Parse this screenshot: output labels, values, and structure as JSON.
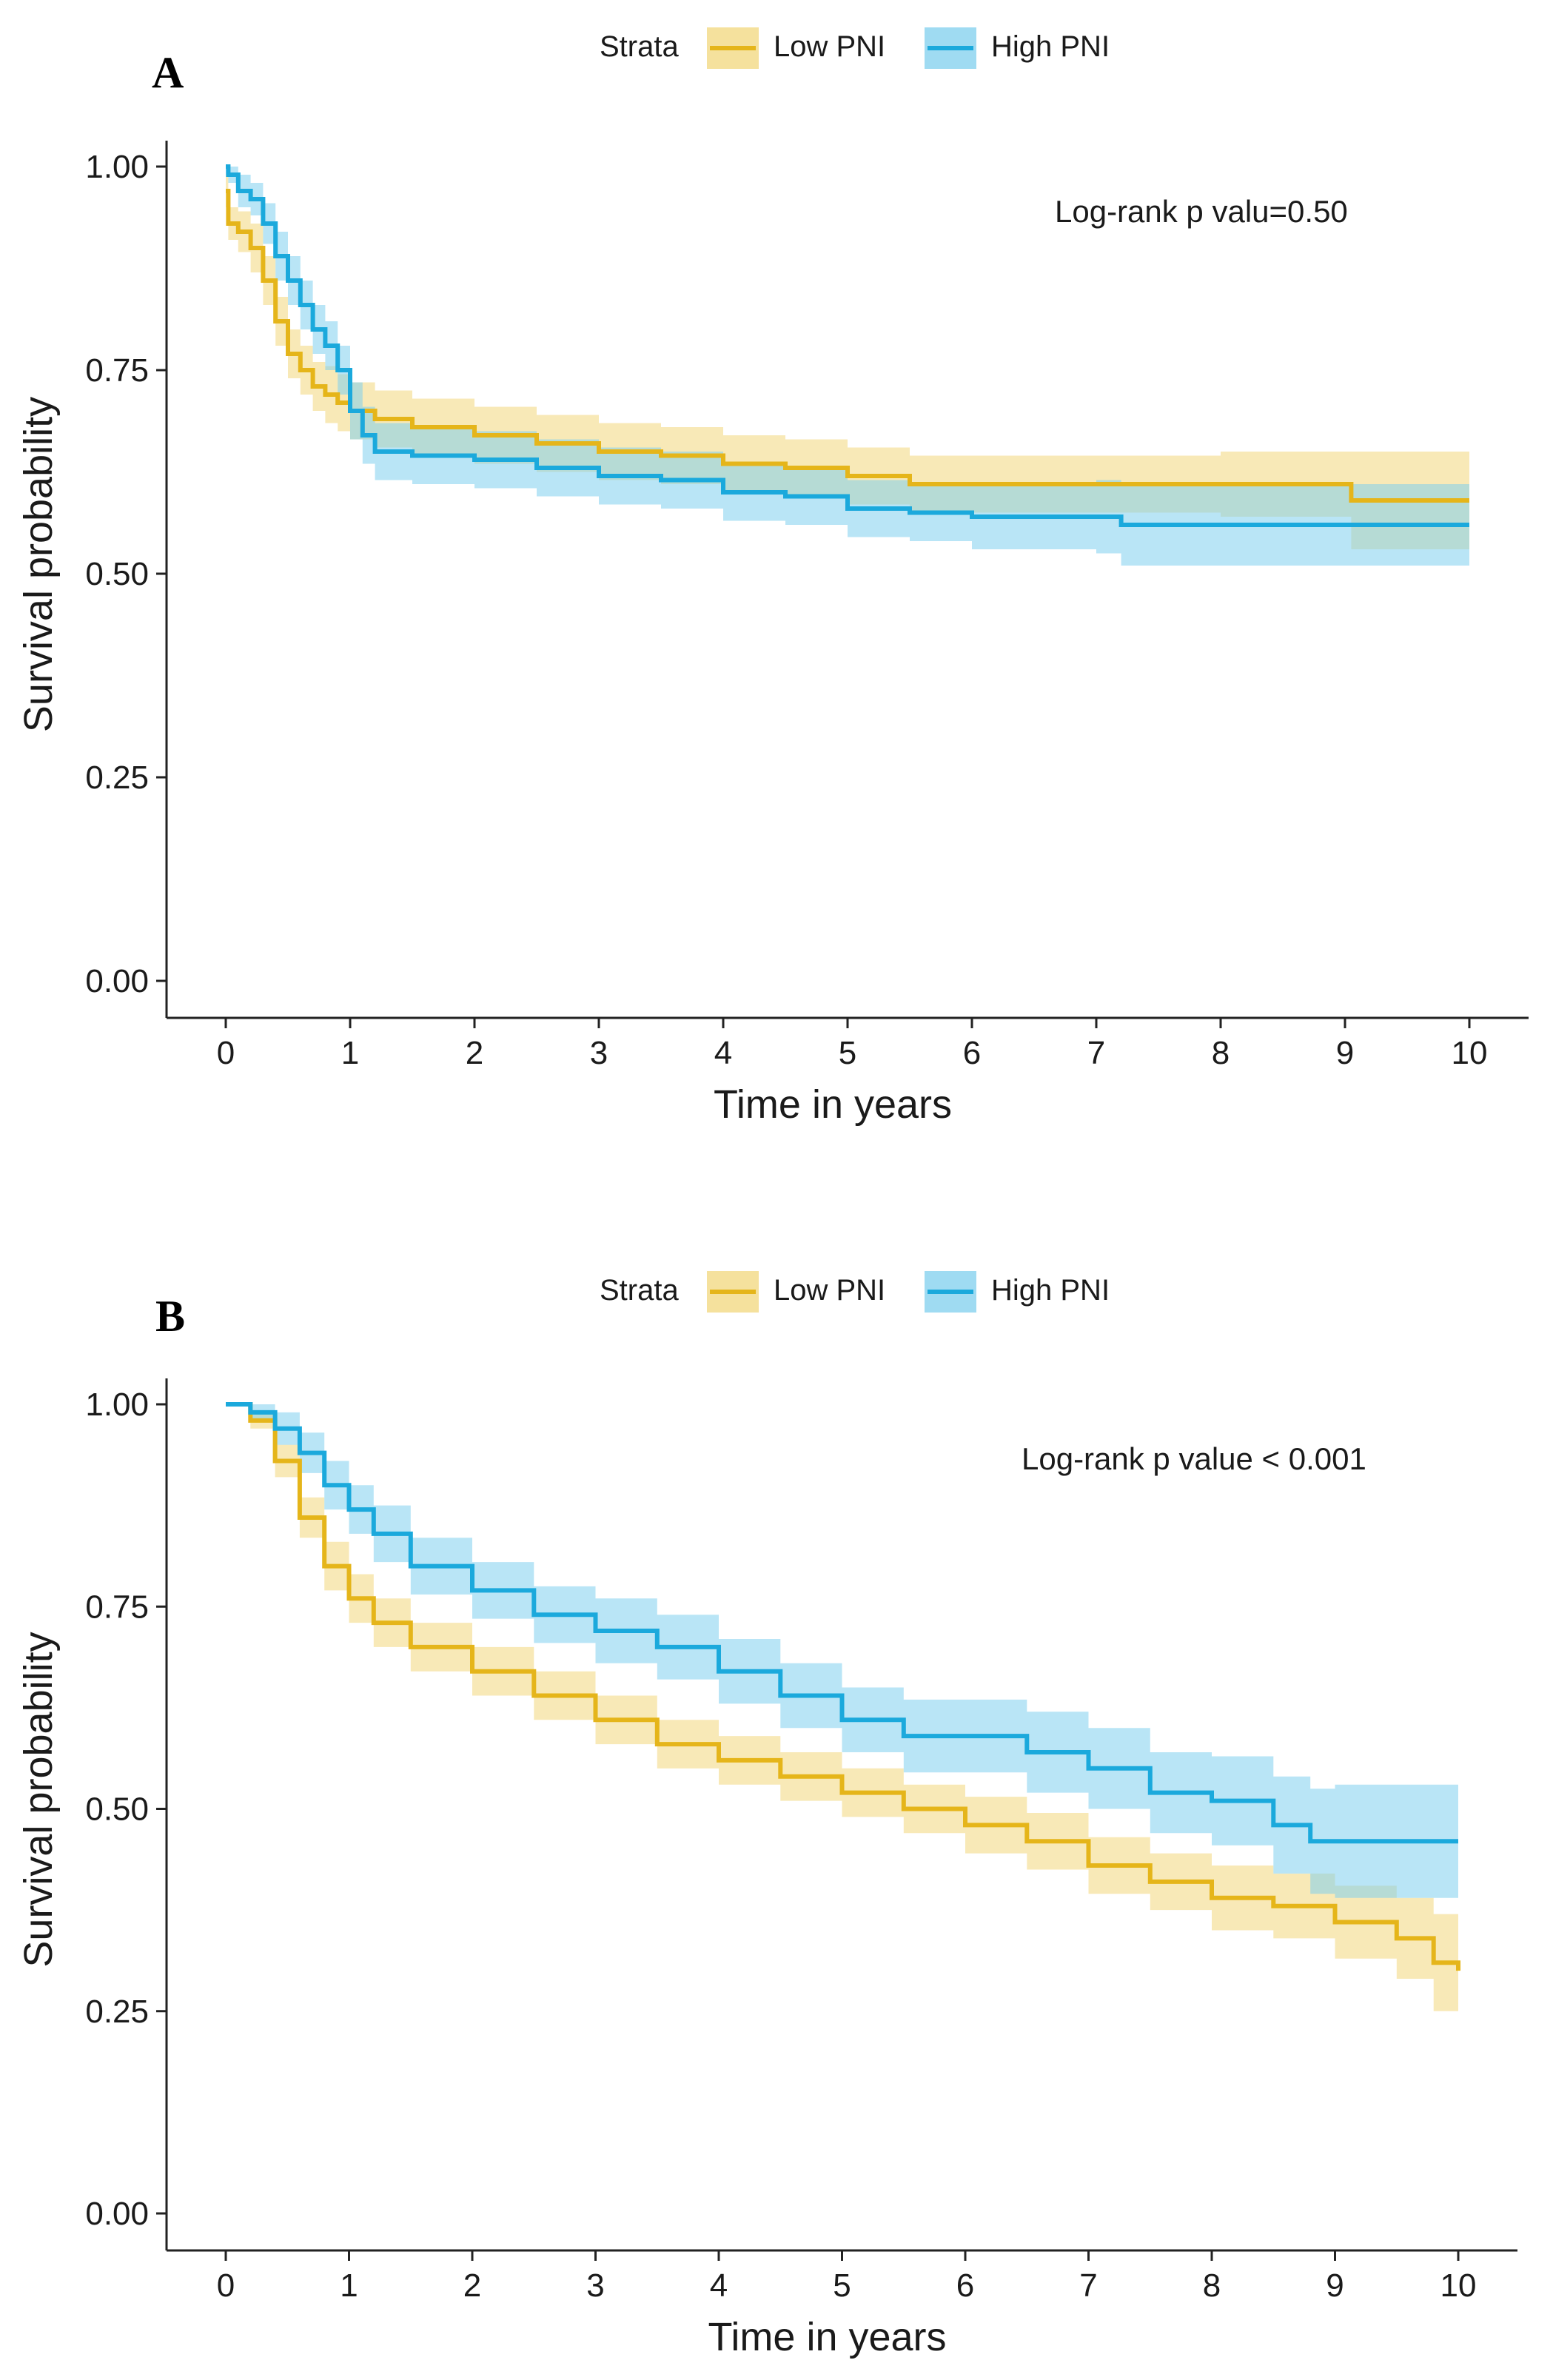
{
  "colors": {
    "low": "#E5B51A",
    "high": "#1BA9DC",
    "low_band": "#F2D77C",
    "high_band": "#7FCFEE"
  },
  "chart_data": [
    {
      "panel": "A",
      "type": "line",
      "subtype": "kaplan-meier",
      "legend_title": "Strata",
      "xlabel": "Time in years",
      "ylabel": "Survival probability",
      "xlim": [
        0,
        10
      ],
      "ylim": [
        0,
        1
      ],
      "xticks": [
        0,
        1,
        2,
        3,
        4,
        5,
        6,
        7,
        8,
        9,
        10
      ],
      "yticks": [
        "0.00",
        "0.25",
        "0.50",
        "0.75",
        "1.00"
      ],
      "annotation": "Log-rank p valu=0.50",
      "series": [
        {
          "name": "Low PNI",
          "color_key": "low",
          "x": [
            0,
            0.02,
            0.1,
            0.2,
            0.3,
            0.4,
            0.5,
            0.6,
            0.7,
            0.8,
            0.9,
            1.0,
            1.2,
            1.5,
            2.0,
            2.5,
            3.0,
            3.5,
            4.0,
            4.5,
            5.0,
            5.5,
            6.0,
            7.0,
            8.0,
            9.0,
            9.05,
            10.0
          ],
          "y": [
            0.97,
            0.93,
            0.92,
            0.9,
            0.86,
            0.81,
            0.77,
            0.75,
            0.73,
            0.72,
            0.71,
            0.7,
            0.69,
            0.68,
            0.67,
            0.66,
            0.65,
            0.645,
            0.635,
            0.63,
            0.62,
            0.61,
            0.61,
            0.61,
            0.61,
            0.61,
            0.59,
            0.59
          ],
          "ci_width": [
            0.02,
            0.02,
            0.025,
            0.03,
            0.03,
            0.03,
            0.03,
            0.03,
            0.03,
            0.035,
            0.035,
            0.035,
            0.035,
            0.035,
            0.035,
            0.035,
            0.035,
            0.035,
            0.035,
            0.035,
            0.035,
            0.035,
            0.035,
            0.035,
            0.04,
            0.04,
            0.06,
            0.06
          ]
        },
        {
          "name": "High PNI",
          "color_key": "high",
          "x": [
            0,
            0.02,
            0.1,
            0.2,
            0.3,
            0.4,
            0.5,
            0.6,
            0.7,
            0.8,
            0.9,
            1.0,
            1.1,
            1.2,
            1.5,
            2.0,
            2.5,
            3.0,
            3.5,
            4.0,
            4.5,
            5.0,
            5.5,
            6.0,
            7.0,
            7.2,
            8.0,
            9.0,
            10.0
          ],
          "y": [
            1.0,
            0.99,
            0.97,
            0.96,
            0.93,
            0.89,
            0.86,
            0.83,
            0.8,
            0.78,
            0.75,
            0.7,
            0.67,
            0.65,
            0.645,
            0.64,
            0.63,
            0.62,
            0.615,
            0.6,
            0.595,
            0.58,
            0.575,
            0.57,
            0.57,
            0.56,
            0.56,
            0.56,
            0.56
          ],
          "ci_width": [
            0.01,
            0.01,
            0.02,
            0.02,
            0.025,
            0.03,
            0.03,
            0.03,
            0.03,
            0.03,
            0.03,
            0.035,
            0.035,
            0.035,
            0.035,
            0.035,
            0.035,
            0.035,
            0.035,
            0.035,
            0.035,
            0.035,
            0.035,
            0.04,
            0.045,
            0.05,
            0.05,
            0.05,
            0.05
          ]
        }
      ]
    },
    {
      "panel": "B",
      "type": "line",
      "subtype": "kaplan-meier",
      "legend_title": "Strata",
      "xlabel": "Time in years",
      "ylabel": "Survival probability",
      "xlim": [
        0,
        10
      ],
      "ylim": [
        0,
        1
      ],
      "xticks": [
        0,
        1,
        2,
        3,
        4,
        5,
        6,
        7,
        8,
        9,
        10
      ],
      "yticks": [
        "0.00",
        "0.25",
        "0.50",
        "0.75",
        "1.00"
      ],
      "annotation": "Log-rank p value < 0.001",
      "series": [
        {
          "name": "Low PNI",
          "color_key": "low",
          "x": [
            0,
            0.2,
            0.4,
            0.6,
            0.8,
            1.0,
            1.2,
            1.5,
            2.0,
            2.5,
            3.0,
            3.5,
            4.0,
            4.5,
            5.0,
            5.5,
            6.0,
            6.5,
            7.0,
            7.5,
            8.0,
            8.5,
            9.0,
            9.5,
            9.8,
            10.0
          ],
          "y": [
            1.0,
            0.98,
            0.93,
            0.86,
            0.8,
            0.76,
            0.73,
            0.7,
            0.67,
            0.64,
            0.61,
            0.58,
            0.56,
            0.54,
            0.52,
            0.5,
            0.48,
            0.46,
            0.43,
            0.41,
            0.39,
            0.38,
            0.36,
            0.34,
            0.31,
            0.3
          ],
          "ci_width": [
            0.0,
            0.01,
            0.02,
            0.025,
            0.03,
            0.03,
            0.03,
            0.03,
            0.03,
            0.03,
            0.03,
            0.03,
            0.03,
            0.03,
            0.03,
            0.03,
            0.035,
            0.035,
            0.035,
            0.035,
            0.04,
            0.04,
            0.045,
            0.05,
            0.06,
            0.07
          ]
        },
        {
          "name": "High PNI",
          "color_key": "high",
          "x": [
            0,
            0.2,
            0.4,
            0.6,
            0.8,
            1.0,
            1.2,
            1.5,
            2.0,
            2.5,
            3.0,
            3.5,
            4.0,
            4.5,
            5.0,
            5.5,
            6.0,
            6.5,
            7.0,
            7.5,
            8.0,
            8.5,
            8.8,
            9.0,
            10.0
          ],
          "y": [
            1.0,
            0.99,
            0.97,
            0.94,
            0.9,
            0.87,
            0.84,
            0.8,
            0.77,
            0.74,
            0.72,
            0.7,
            0.67,
            0.64,
            0.61,
            0.59,
            0.59,
            0.57,
            0.55,
            0.52,
            0.51,
            0.48,
            0.46,
            0.46,
            0.46
          ],
          "ci_width": [
            0.0,
            0.01,
            0.02,
            0.025,
            0.03,
            0.03,
            0.035,
            0.035,
            0.035,
            0.035,
            0.04,
            0.04,
            0.04,
            0.04,
            0.04,
            0.045,
            0.045,
            0.05,
            0.05,
            0.05,
            0.055,
            0.06,
            0.065,
            0.07,
            0.07
          ]
        }
      ]
    }
  ]
}
